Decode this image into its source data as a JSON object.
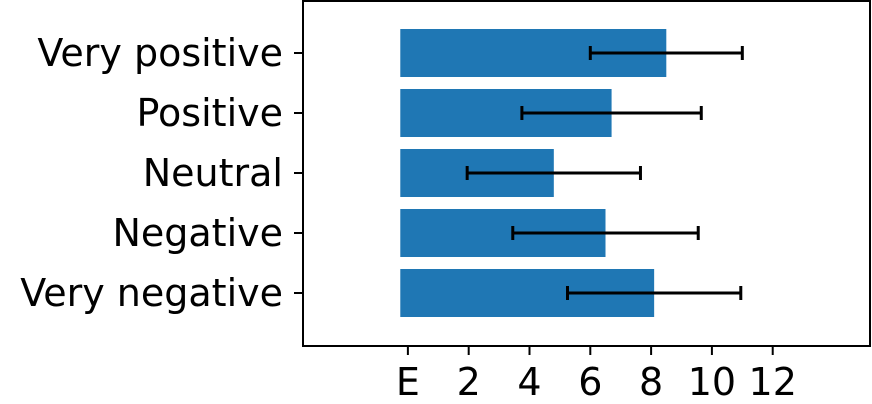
{
  "chart_data": {
    "type": "bar",
    "orientation": "horizontal",
    "title": "",
    "xlabel": "",
    "ylabel": "",
    "categories": [
      "Very negative",
      "Negative",
      "Neutral",
      "Positive",
      "Very positive"
    ],
    "values": [
      8.1,
      6.5,
      4.8,
      6.7,
      8.5
    ],
    "errors": [
      2.85,
      3.05,
      2.85,
      2.95,
      2.5
    ],
    "x_ticks": [
      {
        "value": 0,
        "label": "E"
      },
      {
        "value": 2,
        "label": "2"
      },
      {
        "value": 4,
        "label": "4"
      },
      {
        "value": 6,
        "label": "6"
      },
      {
        "value": 8,
        "label": "8"
      },
      {
        "value": 10,
        "label": "10"
      },
      {
        "value": 12,
        "label": "12"
      }
    ],
    "xlim": [
      -3.45,
      15.2
    ],
    "bar_start": -0.25,
    "grid": false,
    "bar_color": "#1f77b4",
    "error_color": "#000000"
  }
}
